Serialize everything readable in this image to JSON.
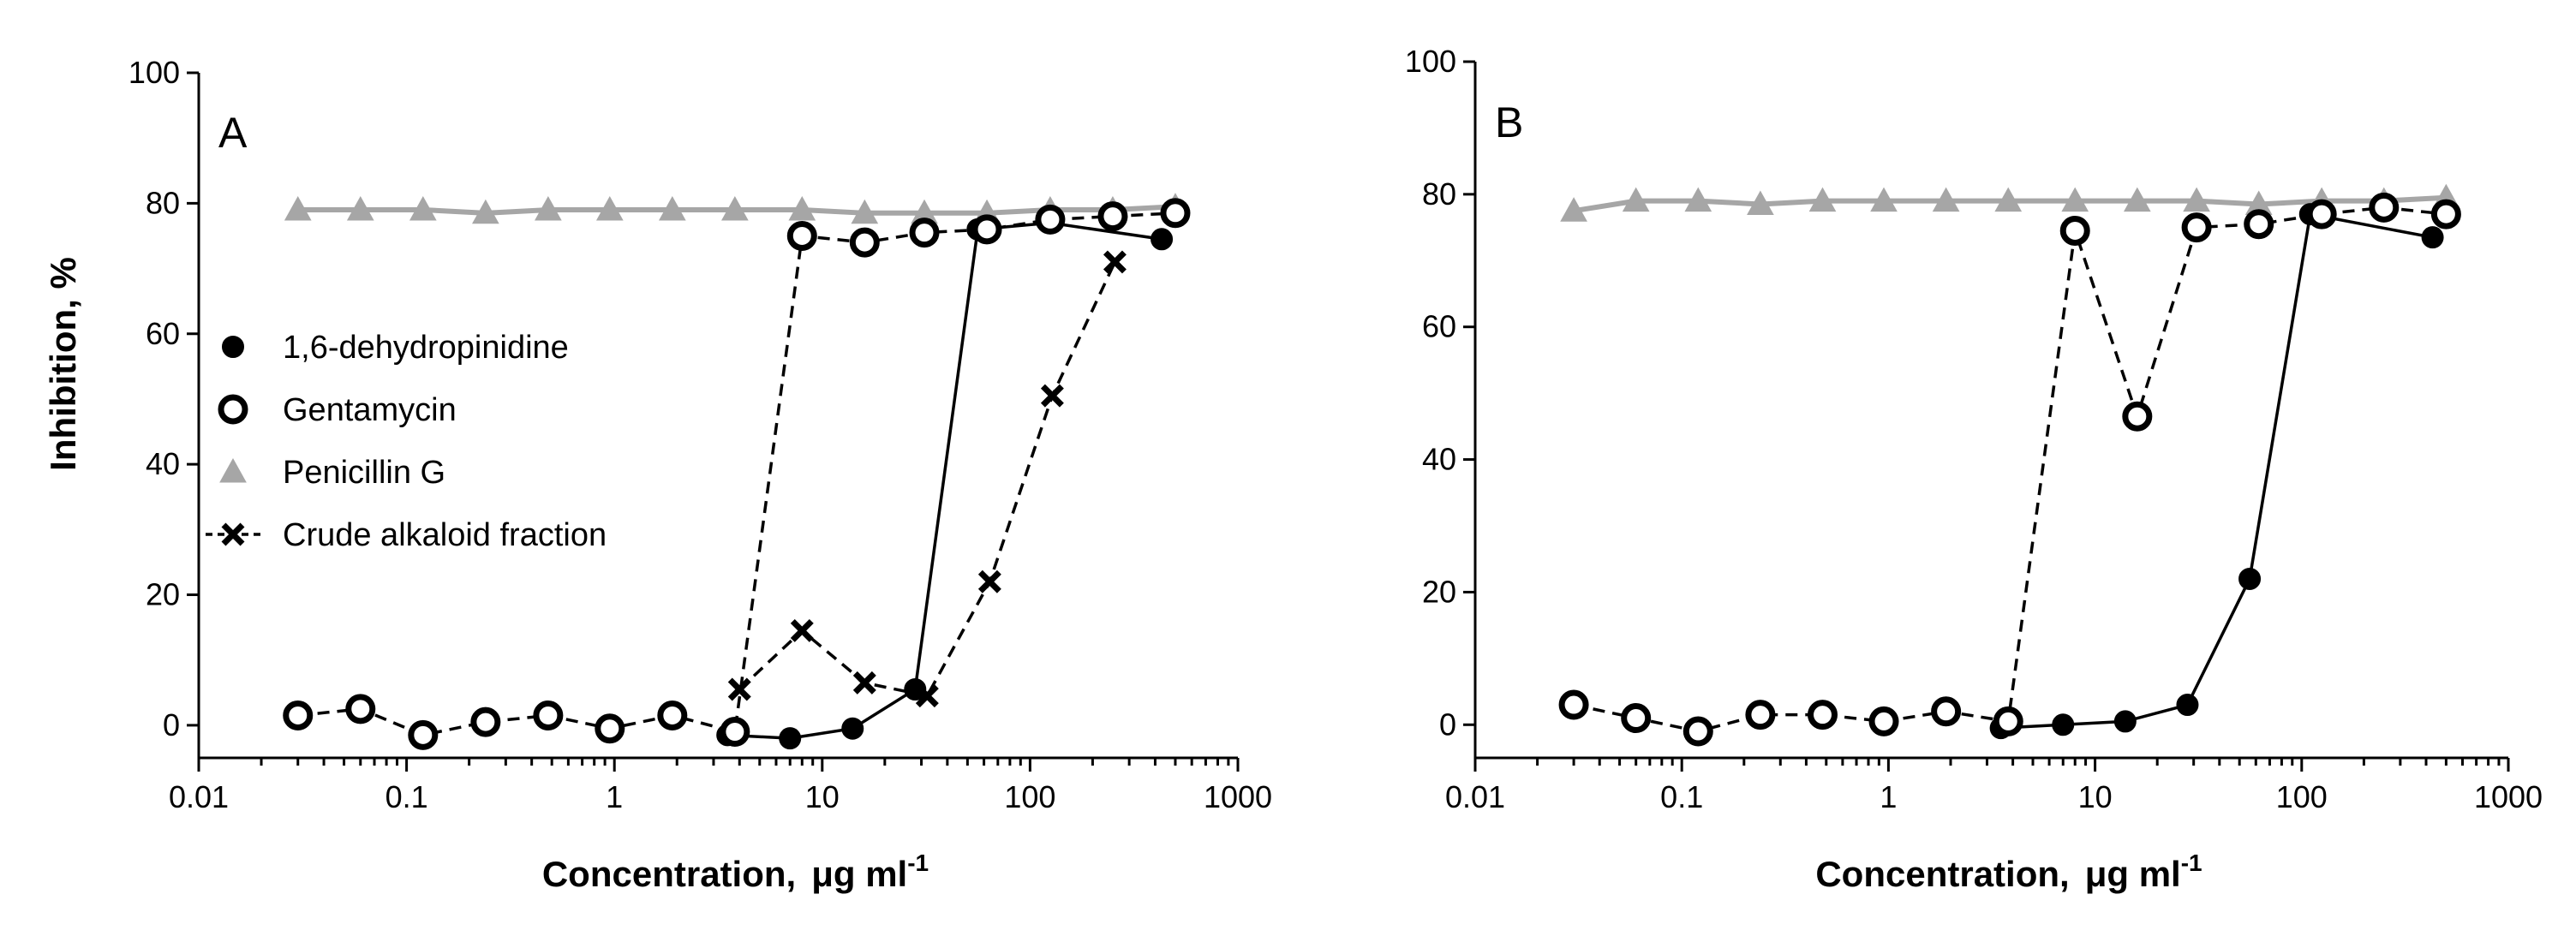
{
  "chart_data": [
    {
      "type": "line",
      "panel_label": "A",
      "xlabel": "Concentration,",
      "xlabel_unit": "μg ml",
      "xlabel_unit_sup": "-1",
      "ylabel": "Inhibition, %",
      "xscale": "log",
      "xlim": [
        0.01,
        1000
      ],
      "ylim": [
        -5,
        100
      ],
      "x_ticks": [
        0.01,
        0.1,
        1,
        10,
        100,
        1000
      ],
      "x_tick_labels": [
        "0.01",
        "0.1",
        "1",
        "10",
        "100",
        "1000"
      ],
      "y_ticks": [
        0,
        20,
        40,
        60,
        80,
        100
      ],
      "y_tick_labels": [
        "0",
        "20",
        "40",
        "60",
        "80",
        "100"
      ],
      "legend_position": "center-left",
      "legend": [
        "1,6-dehydropinidine",
        "Gentamycin",
        "Penicillin G",
        "Crude alkaloid fraction"
      ],
      "series": [
        {
          "name": "1,6-dehydropinidine",
          "marker": "filled-circle",
          "line": "solid",
          "color": "#000000",
          "x": [
            3.5,
            7,
            14,
            28,
            56,
            125,
            430
          ],
          "y": [
            -1.5,
            -2,
            -0.5,
            5.5,
            76,
            77,
            74.5
          ]
        },
        {
          "name": "Gentamycin",
          "marker": "open-circle",
          "line": "dashed",
          "color": "#000000",
          "x": [
            0.03,
            0.06,
            0.12,
            0.24,
            0.48,
            0.95,
            1.9,
            3.8,
            8,
            16,
            31,
            62,
            125,
            250,
            500
          ],
          "y": [
            1.5,
            2.5,
            -1.5,
            0.5,
            1.5,
            -0.5,
            1.5,
            -1,
            75,
            74,
            75.5,
            76,
            77.5,
            78,
            78.5
          ]
        },
        {
          "name": "Penicillin G",
          "marker": "triangle",
          "line": "solid",
          "color": "#a6a6a6",
          "x": [
            0.03,
            0.06,
            0.12,
            0.24,
            0.48,
            0.95,
            1.9,
            3.8,
            8,
            16,
            31,
            62,
            125,
            250,
            500
          ],
          "y": [
            79,
            79,
            79,
            78.5,
            79,
            79,
            79,
            79,
            79,
            78.5,
            78.5,
            78.5,
            79,
            79,
            79.5
          ]
        },
        {
          "name": "Crude alkaloid fraction",
          "marker": "x",
          "line": "dashed",
          "color": "#000000",
          "x": [
            4,
            8,
            16,
            32,
            64,
            128,
            256
          ],
          "y": [
            5.5,
            14.5,
            6.5,
            4.5,
            22,
            50.5,
            71
          ]
        }
      ]
    },
    {
      "type": "line",
      "panel_label": "B",
      "xlabel": "Concentration,",
      "xlabel_unit": "μg ml",
      "xlabel_unit_sup": "-1",
      "ylabel": "",
      "xscale": "log",
      "xlim": [
        0.01,
        1000
      ],
      "ylim": [
        -5,
        100
      ],
      "x_ticks": [
        0.01,
        0.1,
        1,
        10,
        100,
        1000
      ],
      "x_tick_labels": [
        "0.01",
        "0.1",
        "1",
        "10",
        "100",
        "1000"
      ],
      "y_ticks": [
        0,
        20,
        40,
        60,
        80,
        100
      ],
      "y_tick_labels": [
        "0",
        "20",
        "40",
        "60",
        "80",
        "100"
      ],
      "legend": [],
      "series": [
        {
          "name": "1,6-dehydropinidine",
          "marker": "filled-circle",
          "line": "solid",
          "color": "#000000",
          "x": [
            3.5,
            7,
            14,
            28,
            56,
            110,
            430
          ],
          "y": [
            -0.5,
            0,
            0.5,
            3,
            22,
            77,
            73.5
          ]
        },
        {
          "name": "Gentamycin",
          "marker": "open-circle",
          "line": "dashed",
          "color": "#000000",
          "x": [
            0.03,
            0.06,
            0.12,
            0.24,
            0.48,
            0.95,
            1.9,
            3.8,
            8,
            16,
            31,
            62,
            125,
            250,
            500
          ],
          "y": [
            3,
            1,
            -1,
            1.5,
            1.5,
            0.5,
            2,
            0.5,
            74.5,
            46.5,
            75,
            75.5,
            77,
            78,
            77
          ]
        },
        {
          "name": "Penicillin G",
          "marker": "triangle",
          "line": "solid",
          "color": "#a6a6a6",
          "x": [
            0.03,
            0.06,
            0.12,
            0.24,
            0.48,
            0.95,
            1.9,
            3.8,
            8,
            16,
            31,
            62,
            125,
            250,
            500
          ],
          "y": [
            77.5,
            79,
            79,
            78.5,
            79,
            79,
            79,
            79,
            79,
            79,
            79,
            78.5,
            79,
            79,
            79.5
          ]
        }
      ]
    }
  ]
}
